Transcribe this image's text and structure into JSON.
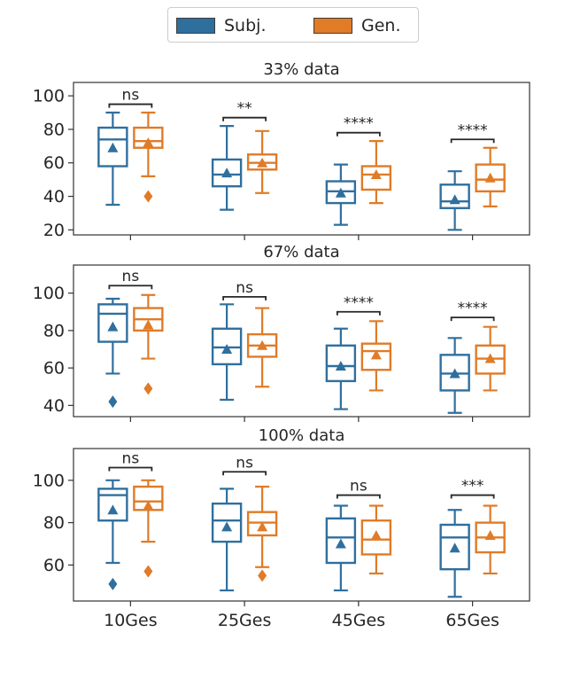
{
  "chart_data": {
    "type": "boxplot",
    "legend": {
      "position": "top-center",
      "entries": [
        {
          "name": "Subj.",
          "color": "#2f6f9e"
        },
        {
          "name": "Gen.",
          "color": "#e07b27"
        }
      ]
    },
    "categories": [
      "10Ges",
      "25Ges",
      "45Ges",
      "65Ges"
    ],
    "panels": [
      {
        "title": "33% data",
        "ylim": [
          17,
          108
        ],
        "yticks": [
          20,
          40,
          60,
          80,
          100
        ],
        "series": [
          {
            "name": "Subj.",
            "boxes": [
              {
                "whislo": 35,
                "q1": 58,
                "med": 74,
                "q3": 81,
                "whishi": 90,
                "mean": 69,
                "fliers": []
              },
              {
                "whislo": 32,
                "q1": 46,
                "med": 53,
                "q3": 62,
                "whishi": 82,
                "mean": 54,
                "fliers": []
              },
              {
                "whislo": 23,
                "q1": 36,
                "med": 43,
                "q3": 49,
                "whishi": 59,
                "mean": 42,
                "fliers": []
              },
              {
                "whislo": 20,
                "q1": 33,
                "med": 37,
                "q3": 47,
                "whishi": 55,
                "mean": 38,
                "fliers": []
              }
            ]
          },
          {
            "name": "Gen.",
            "boxes": [
              {
                "whislo": 52,
                "q1": 69,
                "med": 73,
                "q3": 81,
                "whishi": 90,
                "mean": 72,
                "fliers": [
                  40
                ]
              },
              {
                "whislo": 42,
                "q1": 56,
                "med": 60,
                "q3": 65,
                "whishi": 79,
                "mean": 60,
                "fliers": []
              },
              {
                "whislo": 36,
                "q1": 44,
                "med": 53,
                "q3": 58,
                "whishi": 73,
                "mean": 53,
                "fliers": []
              },
              {
                "whislo": 34,
                "q1": 43,
                "med": 50,
                "q3": 59,
                "whishi": 69,
                "mean": 51,
                "fliers": []
              }
            ]
          }
        ],
        "annotations": [
          {
            "category": "10Ges",
            "text": "ns",
            "y": 95
          },
          {
            "category": "25Ges",
            "text": "**",
            "y": 87
          },
          {
            "category": "45Ges",
            "text": "****",
            "y": 78
          },
          {
            "category": "65Ges",
            "text": "****",
            "y": 74
          }
        ]
      },
      {
        "title": "67% data",
        "ylim": [
          34,
          115
        ],
        "yticks": [
          40,
          60,
          80,
          100
        ],
        "series": [
          {
            "name": "Subj.",
            "boxes": [
              {
                "whislo": 57,
                "q1": 74,
                "med": 89,
                "q3": 94,
                "whishi": 97,
                "mean": 82,
                "fliers": [
                  42
                ]
              },
              {
                "whislo": 43,
                "q1": 62,
                "med": 71,
                "q3": 81,
                "whishi": 94,
                "mean": 70,
                "fliers": []
              },
              {
                "whislo": 38,
                "q1": 53,
                "med": 61,
                "q3": 72,
                "whishi": 81,
                "mean": 61,
                "fliers": []
              },
              {
                "whislo": 36,
                "q1": 48,
                "med": 57,
                "q3": 67,
                "whishi": 76,
                "mean": 57,
                "fliers": []
              }
            ]
          },
          {
            "name": "Gen.",
            "boxes": [
              {
                "whislo": 65,
                "q1": 80,
                "med": 86,
                "q3": 92,
                "whishi": 99,
                "mean": 83,
                "fliers": [
                  49
                ]
              },
              {
                "whislo": 50,
                "q1": 66,
                "med": 72,
                "q3": 78,
                "whishi": 92,
                "mean": 72,
                "fliers": []
              },
              {
                "whislo": 48,
                "q1": 59,
                "med": 69,
                "q3": 73,
                "whishi": 85,
                "mean": 67,
                "fliers": []
              },
              {
                "whislo": 48,
                "q1": 57,
                "med": 65,
                "q3": 72,
                "whishi": 82,
                "mean": 65,
                "fliers": []
              }
            ]
          }
        ],
        "annotations": [
          {
            "category": "10Ges",
            "text": "ns",
            "y": 104
          },
          {
            "category": "25Ges",
            "text": "ns",
            "y": 98
          },
          {
            "category": "45Ges",
            "text": "****",
            "y": 90
          },
          {
            "category": "65Ges",
            "text": "****",
            "y": 87
          }
        ]
      },
      {
        "title": "100% data",
        "ylim": [
          43,
          115
        ],
        "yticks": [
          60,
          80,
          100
        ],
        "series": [
          {
            "name": "Subj.",
            "boxes": [
              {
                "whislo": 61,
                "q1": 81,
                "med": 93,
                "q3": 96,
                "whishi": 100,
                "mean": 86,
                "fliers": [
                  51
                ]
              },
              {
                "whislo": 48,
                "q1": 71,
                "med": 81,
                "q3": 89,
                "whishi": 96,
                "mean": 78,
                "fliers": []
              },
              {
                "whislo": 48,
                "q1": 61,
                "med": 73,
                "q3": 82,
                "whishi": 88,
                "mean": 70,
                "fliers": []
              },
              {
                "whislo": 45,
                "q1": 58,
                "med": 73,
                "q3": 79,
                "whishi": 86,
                "mean": 68,
                "fliers": []
              }
            ]
          },
          {
            "name": "Gen.",
            "boxes": [
              {
                "whislo": 71,
                "q1": 86,
                "med": 90,
                "q3": 97,
                "whishi": 100,
                "mean": 88,
                "fliers": [
                  57
                ]
              },
              {
                "whislo": 59,
                "q1": 74,
                "med": 80,
                "q3": 85,
                "whishi": 97,
                "mean": 78,
                "fliers": [
                  55
                ]
              },
              {
                "whislo": 56,
                "q1": 65,
                "med": 72,
                "q3": 81,
                "whishi": 88,
                "mean": 74,
                "fliers": []
              },
              {
                "whislo": 56,
                "q1": 66,
                "med": 73,
                "q3": 80,
                "whishi": 88,
                "mean": 74,
                "fliers": []
              }
            ]
          }
        ],
        "annotations": [
          {
            "category": "10Ges",
            "text": "ns",
            "y": 106
          },
          {
            "category": "25Ges",
            "text": "ns",
            "y": 104
          },
          {
            "category": "45Ges",
            "text": "ns",
            "y": 93
          },
          {
            "category": "65Ges",
            "text": "***",
            "y": 93
          }
        ]
      }
    ]
  }
}
